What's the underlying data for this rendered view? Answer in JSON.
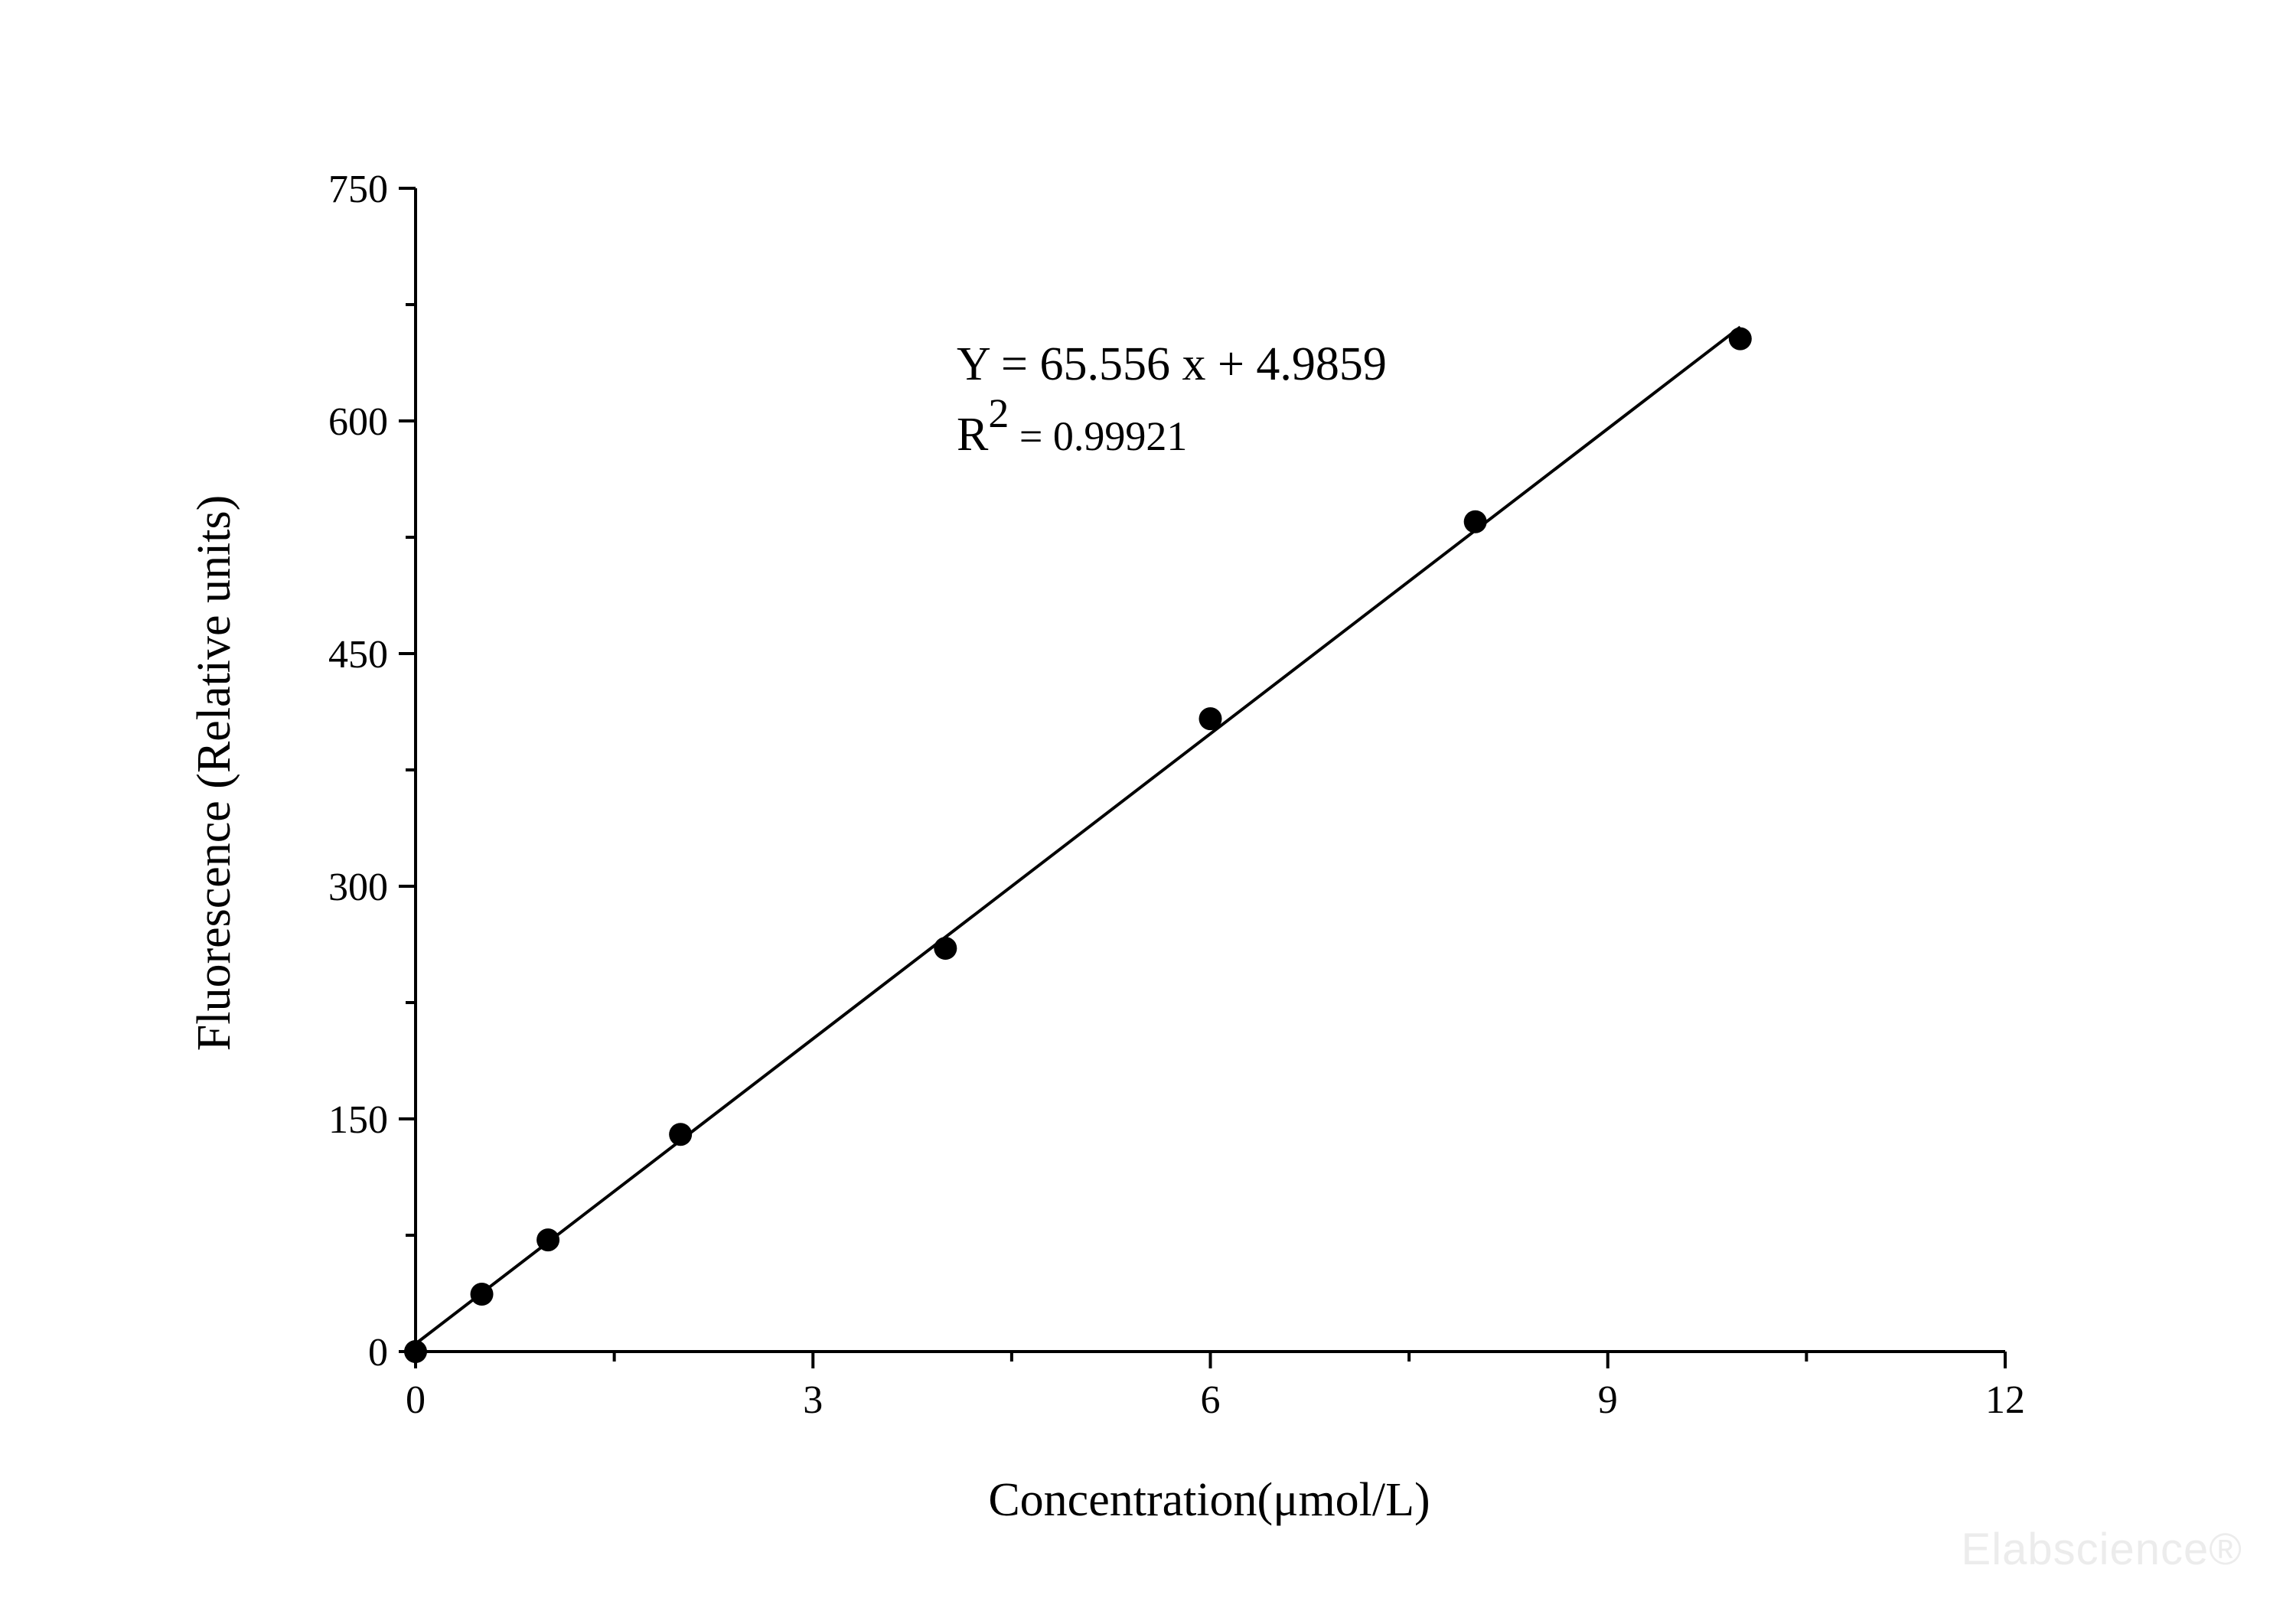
{
  "chart_data": {
    "type": "scatter",
    "xlabel": "Concentration(μmol/L)",
    "ylabel": "Fluorescence (Relative units)",
    "xlim": [
      0,
      12
    ],
    "ylim": [
      0,
      750
    ],
    "x_ticks": [
      0,
      3,
      6,
      9,
      12
    ],
    "y_ticks": [
      0,
      150,
      300,
      450,
      600,
      750
    ],
    "x_tick_labels": [
      "0",
      "3",
      "6",
      "9",
      "12"
    ],
    "y_tick_labels": [
      "0",
      "150",
      "300",
      "450",
      "600",
      "750"
    ],
    "grid": false,
    "series": [
      {
        "x": [
          0,
          0.5,
          1,
          2,
          4,
          6,
          8,
          10
        ],
        "y": [
          0,
          37,
          72,
          140,
          260,
          408,
          535,
          653
        ]
      }
    ],
    "fit": {
      "slope": 65.556,
      "intercept": 4.9859,
      "x_range": [
        0,
        10
      ]
    },
    "annotations": {
      "equation": "Y = 65.556 x + 4.9859",
      "r2_prefix": "R",
      "r2_sup": "2",
      "r2_value": " = 0.99921"
    },
    "colors": {
      "axis": "#000000",
      "marker": "#000000",
      "fit_line": "#000000"
    }
  },
  "watermark": "Elabscience®"
}
